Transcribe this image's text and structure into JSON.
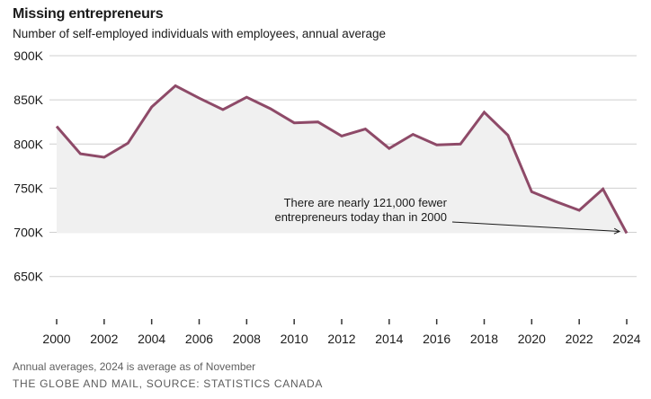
{
  "header": {
    "title": "Missing entrepreneurs",
    "subtitle": "Number of self-employed individuals with employees, annual average"
  },
  "chart_data": {
    "type": "area",
    "title": "Missing entrepreneurs",
    "subtitle": "Number of self-employed individuals with employees, annual average",
    "x": [
      2000,
      2001,
      2002,
      2003,
      2004,
      2005,
      2006,
      2007,
      2008,
      2009,
      2010,
      2011,
      2012,
      2013,
      2014,
      2015,
      2016,
      2017,
      2018,
      2019,
      2020,
      2021,
      2022,
      2023,
      2024
    ],
    "values": [
      820,
      789,
      785,
      801,
      842,
      866,
      852,
      839,
      853,
      840,
      824,
      825,
      809,
      817,
      795,
      811,
      799,
      800,
      836,
      810,
      746,
      735,
      725,
      749,
      699
    ],
    "values_unit": "thousands of self-employed individuals with employees",
    "ylim": [
      650,
      900
    ],
    "ytick_step": 50,
    "ytick_labels_top_to_bottom": [
      "900K",
      "850K",
      "800K",
      "750K",
      "700K",
      "650K"
    ],
    "xtick_years": [
      2000,
      2002,
      2004,
      2006,
      2008,
      2010,
      2012,
      2014,
      2016,
      2018,
      2020,
      2022,
      2024
    ],
    "grid": "horizontal",
    "legend": "none",
    "annotation": {
      "line1": "There are nearly 121,000 fewer",
      "line2": "entrepreneurs today than in 2000",
      "points_to_year": 2024
    },
    "colors": {
      "line": "#8e4a68",
      "area_fill": "#f0f0f0",
      "gridline": "#cfcfcf",
      "axis_text": "#1a1a1a",
      "tick": "#333333",
      "arrow": "#1a1a1a",
      "muted_text": "#5f5f5f"
    }
  },
  "footer": {
    "note": "Annual averages, 2024 is average as of November",
    "source": "THE GLOBE AND MAIL, SOURCE: STATISTICS CANADA"
  }
}
